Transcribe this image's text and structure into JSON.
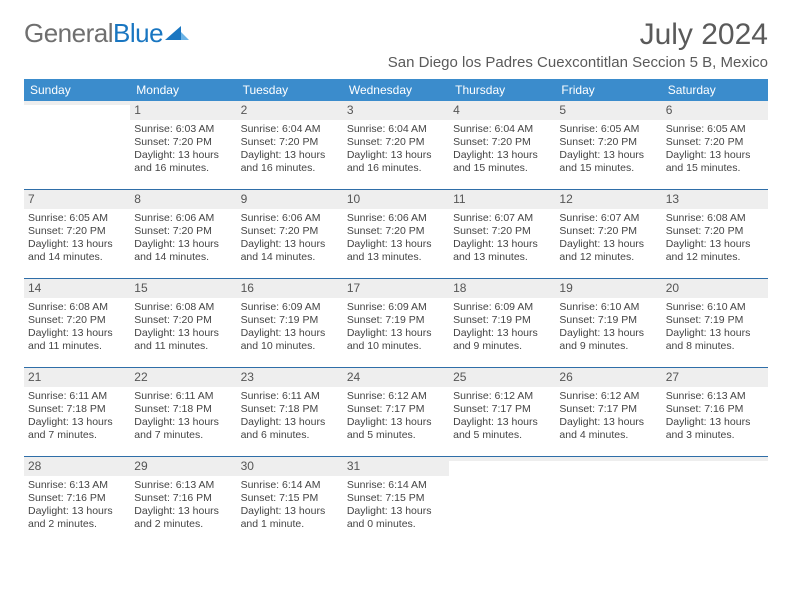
{
  "brand": {
    "part1": "General",
    "part2": "Blue"
  },
  "title": {
    "month": "July 2024",
    "location": "San Diego los Padres Cuexcontitlan Seccion 5 B, Mexico"
  },
  "colors": {
    "header_bg": "#3b8ccc",
    "header_text": "#ffffff",
    "week_divider": "#2f6ea8",
    "daynum_bg": "#eeeeee",
    "text": "#444444",
    "brand_gray": "#6f6f6f",
    "brand_blue": "#1976c1"
  },
  "dow": [
    "Sunday",
    "Monday",
    "Tuesday",
    "Wednesday",
    "Thursday",
    "Friday",
    "Saturday"
  ],
  "weeks": [
    [
      {
        "n": "",
        "l1": "",
        "l2": "",
        "l3": "",
        "l4": ""
      },
      {
        "n": "1",
        "l1": "Sunrise: 6:03 AM",
        "l2": "Sunset: 7:20 PM",
        "l3": "Daylight: 13 hours",
        "l4": "and 16 minutes."
      },
      {
        "n": "2",
        "l1": "Sunrise: 6:04 AM",
        "l2": "Sunset: 7:20 PM",
        "l3": "Daylight: 13 hours",
        "l4": "and 16 minutes."
      },
      {
        "n": "3",
        "l1": "Sunrise: 6:04 AM",
        "l2": "Sunset: 7:20 PM",
        "l3": "Daylight: 13 hours",
        "l4": "and 16 minutes."
      },
      {
        "n": "4",
        "l1": "Sunrise: 6:04 AM",
        "l2": "Sunset: 7:20 PM",
        "l3": "Daylight: 13 hours",
        "l4": "and 15 minutes."
      },
      {
        "n": "5",
        "l1": "Sunrise: 6:05 AM",
        "l2": "Sunset: 7:20 PM",
        "l3": "Daylight: 13 hours",
        "l4": "and 15 minutes."
      },
      {
        "n": "6",
        "l1": "Sunrise: 6:05 AM",
        "l2": "Sunset: 7:20 PM",
        "l3": "Daylight: 13 hours",
        "l4": "and 15 minutes."
      }
    ],
    [
      {
        "n": "7",
        "l1": "Sunrise: 6:05 AM",
        "l2": "Sunset: 7:20 PM",
        "l3": "Daylight: 13 hours",
        "l4": "and 14 minutes."
      },
      {
        "n": "8",
        "l1": "Sunrise: 6:06 AM",
        "l2": "Sunset: 7:20 PM",
        "l3": "Daylight: 13 hours",
        "l4": "and 14 minutes."
      },
      {
        "n": "9",
        "l1": "Sunrise: 6:06 AM",
        "l2": "Sunset: 7:20 PM",
        "l3": "Daylight: 13 hours",
        "l4": "and 14 minutes."
      },
      {
        "n": "10",
        "l1": "Sunrise: 6:06 AM",
        "l2": "Sunset: 7:20 PM",
        "l3": "Daylight: 13 hours",
        "l4": "and 13 minutes."
      },
      {
        "n": "11",
        "l1": "Sunrise: 6:07 AM",
        "l2": "Sunset: 7:20 PM",
        "l3": "Daylight: 13 hours",
        "l4": "and 13 minutes."
      },
      {
        "n": "12",
        "l1": "Sunrise: 6:07 AM",
        "l2": "Sunset: 7:20 PM",
        "l3": "Daylight: 13 hours",
        "l4": "and 12 minutes."
      },
      {
        "n": "13",
        "l1": "Sunrise: 6:08 AM",
        "l2": "Sunset: 7:20 PM",
        "l3": "Daylight: 13 hours",
        "l4": "and 12 minutes."
      }
    ],
    [
      {
        "n": "14",
        "l1": "Sunrise: 6:08 AM",
        "l2": "Sunset: 7:20 PM",
        "l3": "Daylight: 13 hours",
        "l4": "and 11 minutes."
      },
      {
        "n": "15",
        "l1": "Sunrise: 6:08 AM",
        "l2": "Sunset: 7:20 PM",
        "l3": "Daylight: 13 hours",
        "l4": "and 11 minutes."
      },
      {
        "n": "16",
        "l1": "Sunrise: 6:09 AM",
        "l2": "Sunset: 7:19 PM",
        "l3": "Daylight: 13 hours",
        "l4": "and 10 minutes."
      },
      {
        "n": "17",
        "l1": "Sunrise: 6:09 AM",
        "l2": "Sunset: 7:19 PM",
        "l3": "Daylight: 13 hours",
        "l4": "and 10 minutes."
      },
      {
        "n": "18",
        "l1": "Sunrise: 6:09 AM",
        "l2": "Sunset: 7:19 PM",
        "l3": "Daylight: 13 hours",
        "l4": "and 9 minutes."
      },
      {
        "n": "19",
        "l1": "Sunrise: 6:10 AM",
        "l2": "Sunset: 7:19 PM",
        "l3": "Daylight: 13 hours",
        "l4": "and 9 minutes."
      },
      {
        "n": "20",
        "l1": "Sunrise: 6:10 AM",
        "l2": "Sunset: 7:19 PM",
        "l3": "Daylight: 13 hours",
        "l4": "and 8 minutes."
      }
    ],
    [
      {
        "n": "21",
        "l1": "Sunrise: 6:11 AM",
        "l2": "Sunset: 7:18 PM",
        "l3": "Daylight: 13 hours",
        "l4": "and 7 minutes."
      },
      {
        "n": "22",
        "l1": "Sunrise: 6:11 AM",
        "l2": "Sunset: 7:18 PM",
        "l3": "Daylight: 13 hours",
        "l4": "and 7 minutes."
      },
      {
        "n": "23",
        "l1": "Sunrise: 6:11 AM",
        "l2": "Sunset: 7:18 PM",
        "l3": "Daylight: 13 hours",
        "l4": "and 6 minutes."
      },
      {
        "n": "24",
        "l1": "Sunrise: 6:12 AM",
        "l2": "Sunset: 7:17 PM",
        "l3": "Daylight: 13 hours",
        "l4": "and 5 minutes."
      },
      {
        "n": "25",
        "l1": "Sunrise: 6:12 AM",
        "l2": "Sunset: 7:17 PM",
        "l3": "Daylight: 13 hours",
        "l4": "and 5 minutes."
      },
      {
        "n": "26",
        "l1": "Sunrise: 6:12 AM",
        "l2": "Sunset: 7:17 PM",
        "l3": "Daylight: 13 hours",
        "l4": "and 4 minutes."
      },
      {
        "n": "27",
        "l1": "Sunrise: 6:13 AM",
        "l2": "Sunset: 7:16 PM",
        "l3": "Daylight: 13 hours",
        "l4": "and 3 minutes."
      }
    ],
    [
      {
        "n": "28",
        "l1": "Sunrise: 6:13 AM",
        "l2": "Sunset: 7:16 PM",
        "l3": "Daylight: 13 hours",
        "l4": "and 2 minutes."
      },
      {
        "n": "29",
        "l1": "Sunrise: 6:13 AM",
        "l2": "Sunset: 7:16 PM",
        "l3": "Daylight: 13 hours",
        "l4": "and 2 minutes."
      },
      {
        "n": "30",
        "l1": "Sunrise: 6:14 AM",
        "l2": "Sunset: 7:15 PM",
        "l3": "Daylight: 13 hours",
        "l4": "and 1 minute."
      },
      {
        "n": "31",
        "l1": "Sunrise: 6:14 AM",
        "l2": "Sunset: 7:15 PM",
        "l3": "Daylight: 13 hours",
        "l4": "and 0 minutes."
      },
      {
        "n": "",
        "l1": "",
        "l2": "",
        "l3": "",
        "l4": ""
      },
      {
        "n": "",
        "l1": "",
        "l2": "",
        "l3": "",
        "l4": ""
      },
      {
        "n": "",
        "l1": "",
        "l2": "",
        "l3": "",
        "l4": ""
      }
    ]
  ]
}
